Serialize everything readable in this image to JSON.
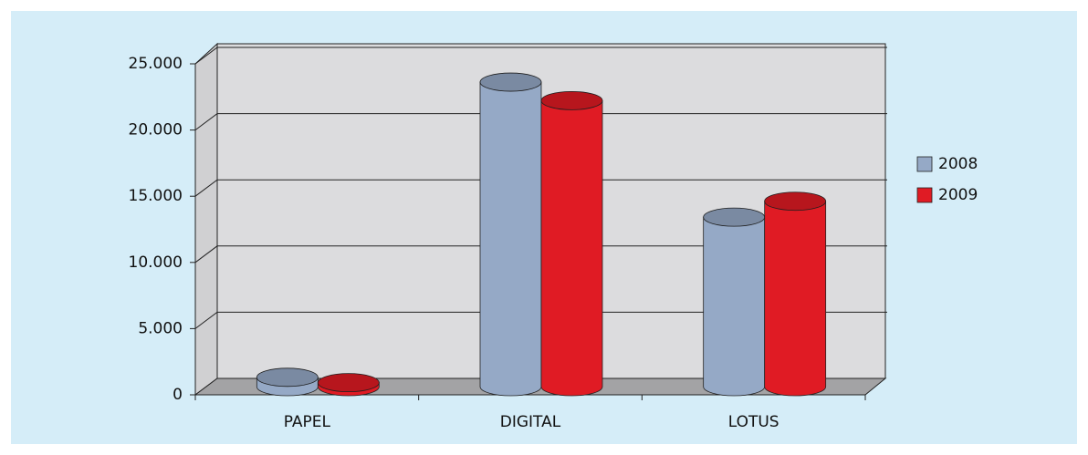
{
  "chart_data": {
    "type": "bar3d",
    "categories": [
      "PAPEL",
      "DIGITAL",
      "LOTUS"
    ],
    "series": [
      {
        "name": "2008",
        "color": "#95a9c6",
        "values": [
          700,
          23000,
          12800
        ]
      },
      {
        "name": "2009",
        "color": "#e01b24",
        "values": [
          300,
          21600,
          14000
        ]
      }
    ],
    "ylim": [
      0,
      25000
    ],
    "yticks": [
      0,
      {
        "value": 5000,
        "label": "5.000"
      },
      {
        "value": 10000,
        "label": "10.000"
      },
      {
        "value": 15000,
        "label": "15.000"
      },
      {
        "value": 20000,
        "label": "20.000"
      },
      {
        "value": 25000,
        "label": "25.000"
      }
    ],
    "grid": true,
    "legend": "right"
  }
}
